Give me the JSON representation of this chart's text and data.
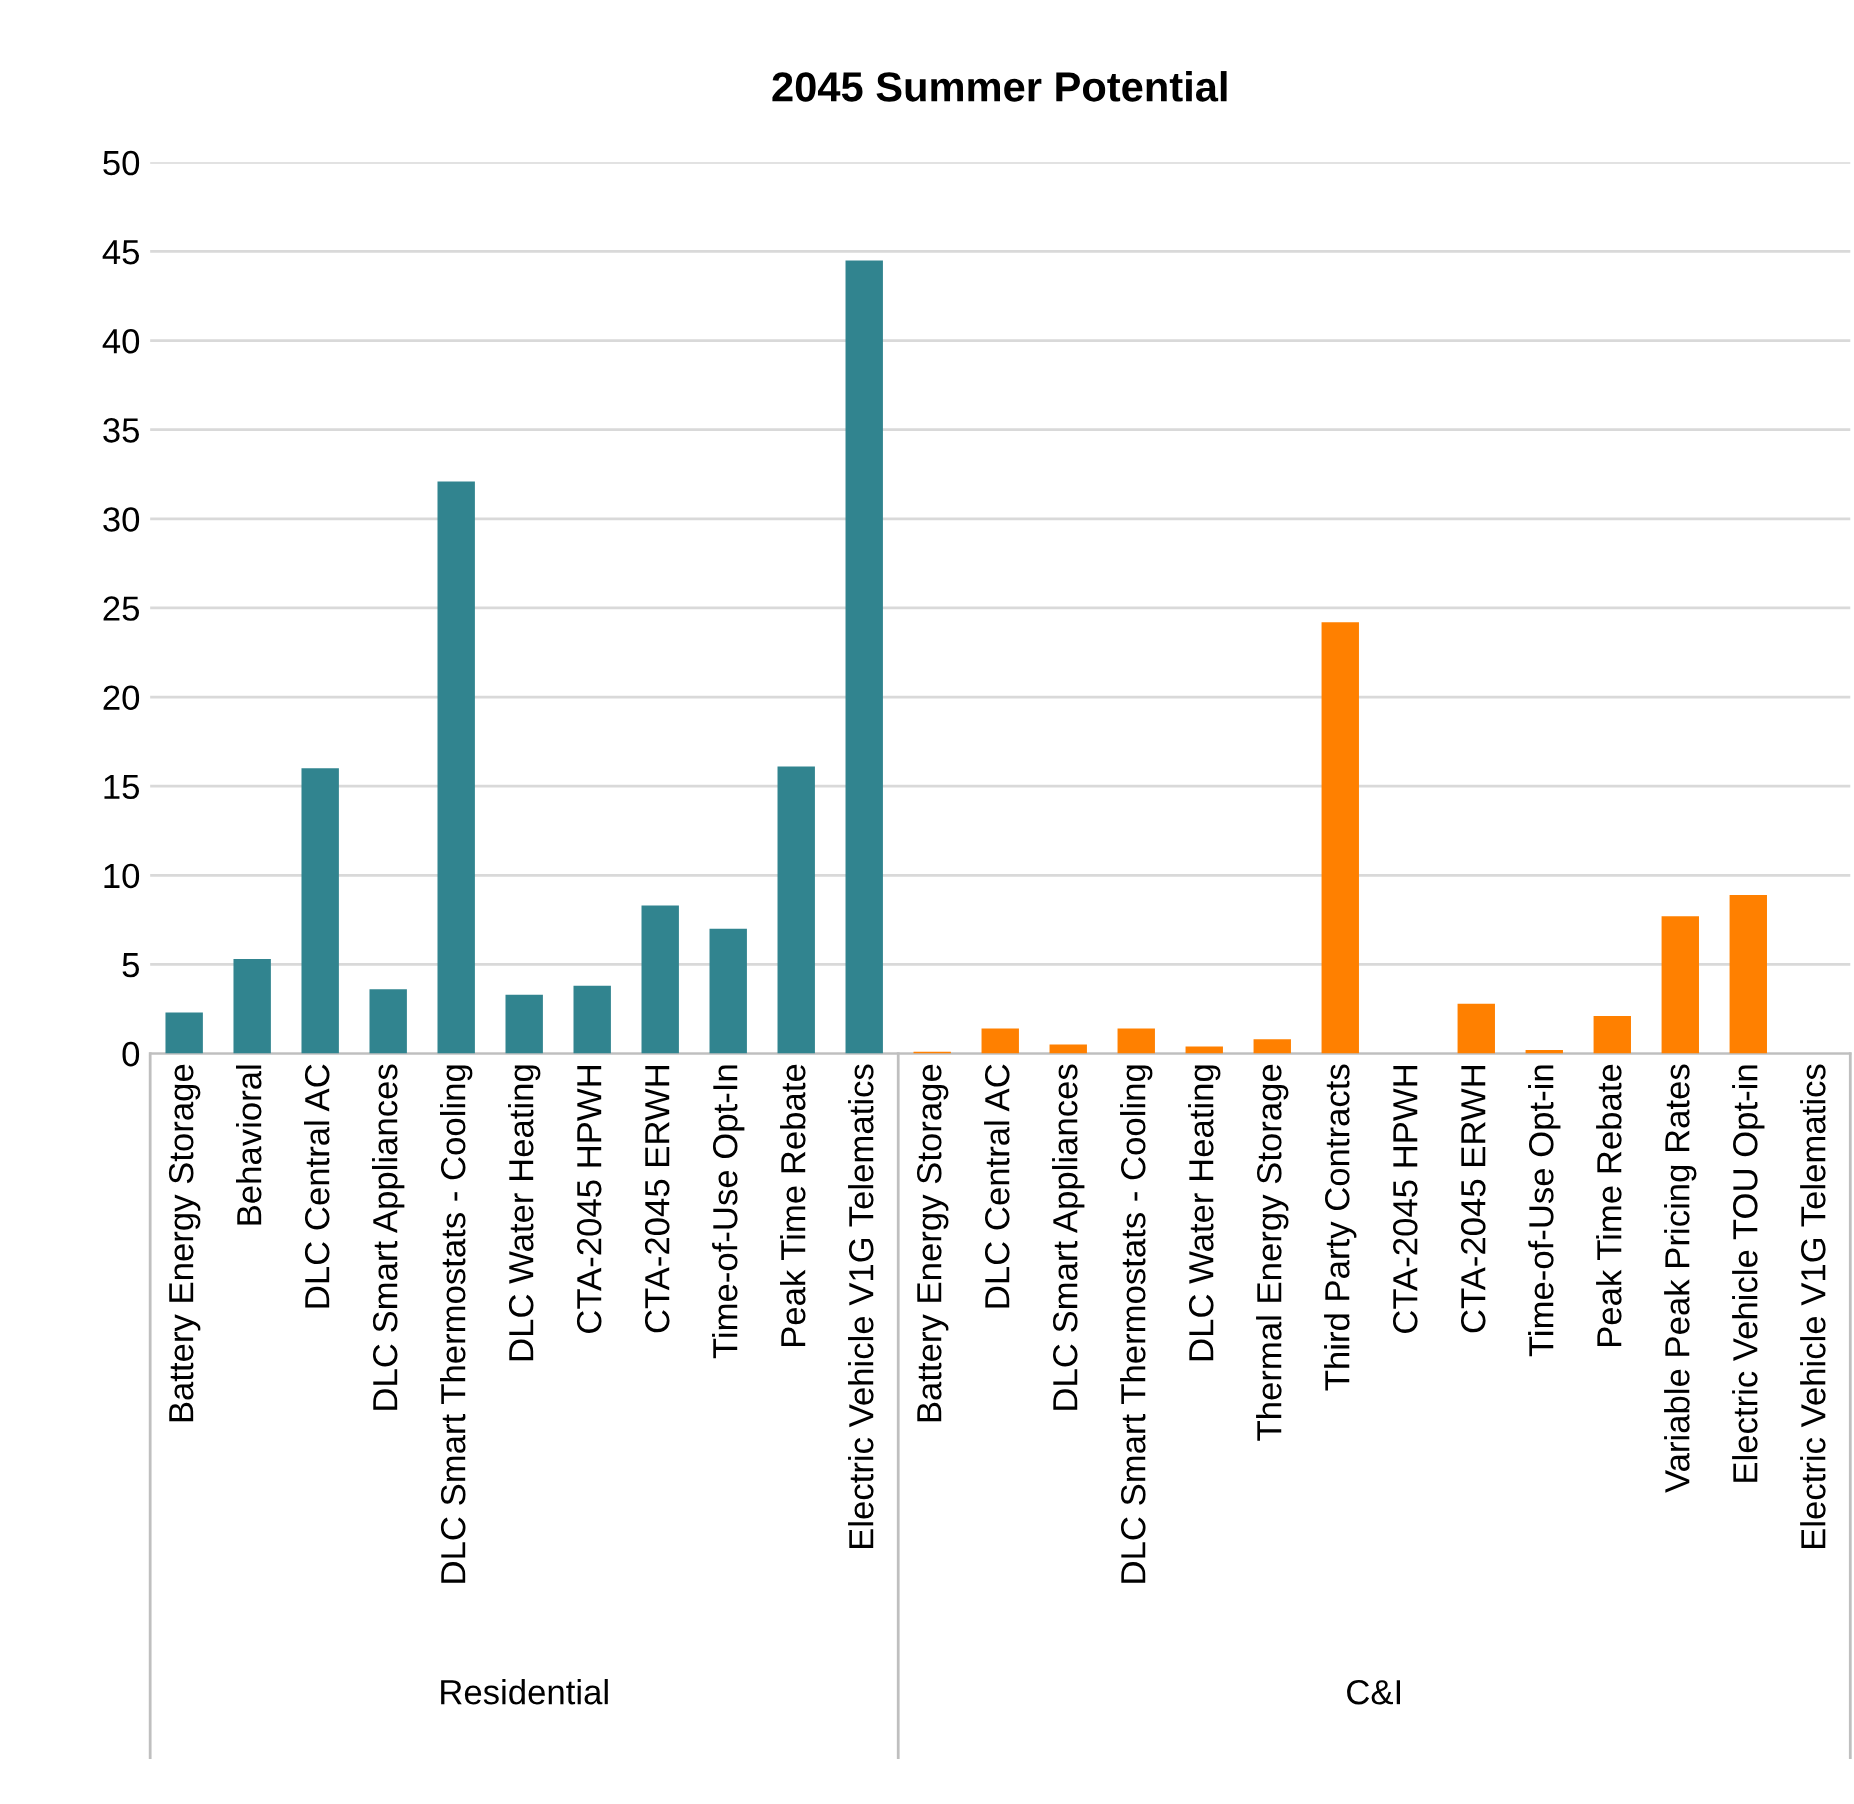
{
  "chart_data": {
    "type": "bar",
    "title": "2045 Summer Potential",
    "categories": [
      "Battery Energy Storage",
      "Behavioral",
      "DLC Central AC",
      "DLC Smart Appliances",
      "DLC Smart Thermostats - Cooling",
      "DLC Water Heating",
      "CTA-2045 HPWH",
      "CTA-2045 ERWH",
      "Time-of-Use Opt-In",
      "Peak Time Rebate",
      "Electric Vehicle V1G Telematics",
      "Battery Energy Storage",
      "DLC Central AC",
      "DLC Smart Appliances",
      "DLC Smart Thermostats - Cooling",
      "DLC Water Heating",
      "Thermal Energy Storage",
      "Third Party Contracts",
      "CTA-2045 HPWH",
      "CTA-2045 ERWH",
      "Time-of-Use Opt-in",
      "Peak Time Rebate",
      "Variable Peak Pricing Rates",
      "Electric Vehicle TOU Opt-in",
      "Electric Vehicle V1G Telematics"
    ],
    "series": [
      {
        "color": "#31848f",
        "values": [
          2.3,
          5.3,
          16.0,
          3.6,
          32.1,
          3.3,
          3.8,
          8.3,
          7.0,
          16.1,
          44.5,
          null,
          null,
          null,
          null,
          null,
          null,
          null,
          null,
          null,
          null,
          null,
          null,
          null,
          null
        ]
      },
      {
        "color": "#ff8000",
        "values": [
          null,
          null,
          null,
          null,
          null,
          null,
          null,
          null,
          null,
          null,
          null,
          0.1,
          1.4,
          0.5,
          1.4,
          0.4,
          0.8,
          24.2,
          0,
          2.8,
          0.2,
          2.1,
          7.7,
          8.9,
          0
        ]
      }
    ],
    "annotations": [
      "Residential",
      "C&I"
    ],
    "ylim": [
      0,
      50
    ],
    "yticks": [
      0,
      5,
      10,
      15,
      20,
      25,
      30,
      35,
      40,
      45,
      50
    ],
    "grid": "y",
    "legend": false
  }
}
